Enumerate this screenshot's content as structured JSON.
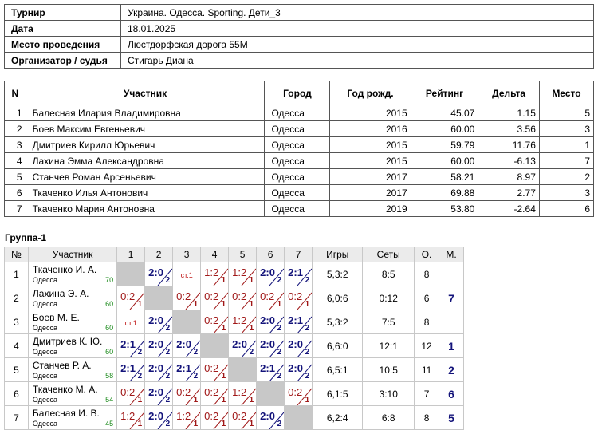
{
  "info": {
    "rows": [
      [
        "Турнир",
        "Украина. Одесса. Sporting. Дети_3"
      ],
      [
        "Дата",
        "18.01.2025"
      ],
      [
        "Место проведения",
        "Люстдорфская дорога 55М"
      ],
      [
        "Организатор / судья",
        "Стигарь Диана"
      ]
    ]
  },
  "players": {
    "header": [
      "N",
      "Участник",
      "Город",
      "Год рожд.",
      "Рейтинг",
      "Дельта",
      "Место"
    ],
    "rows": [
      [
        "1",
        "Балесная Илария Владимировна",
        "Одесса",
        "2015",
        "45.07",
        "1.15",
        "5"
      ],
      [
        "2",
        "Боев Максим Евгеньевич",
        "Одесса",
        "2016",
        "60.00",
        "3.56",
        "3"
      ],
      [
        "3",
        "Дмитриев Кирилл Юрьевич",
        "Одесса",
        "2015",
        "59.79",
        "11.76",
        "1"
      ],
      [
        "4",
        "Лахина Эмма Александровна",
        "Одесса",
        "2015",
        "60.00",
        "-6.13",
        "7"
      ],
      [
        "5",
        "Станчев Роман Арсеньевич",
        "Одесса",
        "2017",
        "58.21",
        "8.97",
        "2"
      ],
      [
        "6",
        "Ткаченко Илья Антонович",
        "Одесса",
        "2017",
        "69.88",
        "2.77",
        "3"
      ],
      [
        "7",
        "Ткаченко Мария Антоновна",
        "Одесса",
        "2019",
        "53.80",
        "-2.64",
        "6"
      ]
    ]
  },
  "group": {
    "title": "Группа-1",
    "header": [
      "№",
      "Участник",
      "1",
      "2",
      "3",
      "4",
      "5",
      "6",
      "7",
      "Игры",
      "Сеты",
      "О.",
      "М."
    ],
    "rows": [
      {
        "n": "1",
        "name": "Ткаченко И. А.",
        "city": "Одесса",
        "rating": "70",
        "results": [
          null,
          {
            "score": "2:0",
            "sub": "2",
            "win": true
          },
          {
            "note": "ст.1"
          },
          {
            "score": "1:2",
            "sub": "1",
            "win": false
          },
          {
            "score": "1:2",
            "sub": "1",
            "win": false
          },
          {
            "score": "2:0",
            "sub": "2",
            "win": true
          },
          {
            "score": "2:1",
            "sub": "2",
            "win": true
          }
        ],
        "games": "5,3:2",
        "sets": "8:5",
        "points": "8",
        "place": null
      },
      {
        "n": "2",
        "name": "Лахина Э. А.",
        "city": "Одесса",
        "rating": "60",
        "results": [
          {
            "score": "0:2",
            "sub": "1",
            "win": false
          },
          null,
          {
            "score": "0:2",
            "sub": "1",
            "win": false
          },
          {
            "score": "0:2",
            "sub": "1",
            "win": false
          },
          {
            "score": "0:2",
            "sub": "1",
            "win": false
          },
          {
            "score": "0:2",
            "sub": "1",
            "win": false
          },
          {
            "score": "0:2",
            "sub": "1",
            "win": false
          }
        ],
        "games": "6,0:6",
        "sets": "0:12",
        "points": "6",
        "place": "7"
      },
      {
        "n": "3",
        "name": "Боев М. Е.",
        "city": "Одесса",
        "rating": "60",
        "results": [
          {
            "note": "ст.1"
          },
          {
            "score": "2:0",
            "sub": "2",
            "win": true
          },
          null,
          {
            "score": "0:2",
            "sub": "1",
            "win": false
          },
          {
            "score": "1:2",
            "sub": "1",
            "win": false
          },
          {
            "score": "2:0",
            "sub": "2",
            "win": true
          },
          {
            "score": "2:1",
            "sub": "2",
            "win": true
          }
        ],
        "games": "5,3:2",
        "sets": "7:5",
        "points": "8",
        "place": null
      },
      {
        "n": "4",
        "name": "Дмитриев К. Ю.",
        "city": "Одесса",
        "rating": "60",
        "results": [
          {
            "score": "2:1",
            "sub": "2",
            "win": true
          },
          {
            "score": "2:0",
            "sub": "2",
            "win": true
          },
          {
            "score": "2:0",
            "sub": "2",
            "win": true
          },
          null,
          {
            "score": "2:0",
            "sub": "2",
            "win": true
          },
          {
            "score": "2:0",
            "sub": "2",
            "win": true
          },
          {
            "score": "2:0",
            "sub": "2",
            "win": true
          }
        ],
        "games": "6,6:0",
        "sets": "12:1",
        "points": "12",
        "place": "1"
      },
      {
        "n": "5",
        "name": "Станчев Р. А.",
        "city": "Одесса",
        "rating": "58",
        "results": [
          {
            "score": "2:1",
            "sub": "2",
            "win": true
          },
          {
            "score": "2:0",
            "sub": "2",
            "win": true
          },
          {
            "score": "2:1",
            "sub": "2",
            "win": true
          },
          {
            "score": "0:2",
            "sub": "1",
            "win": false
          },
          null,
          {
            "score": "2:1",
            "sub": "2",
            "win": true
          },
          {
            "score": "2:0",
            "sub": "2",
            "win": true
          }
        ],
        "games": "6,5:1",
        "sets": "10:5",
        "points": "11",
        "place": "2"
      },
      {
        "n": "6",
        "name": "Ткаченко М. А.",
        "city": "Одесса",
        "rating": "54",
        "results": [
          {
            "score": "0:2",
            "sub": "1",
            "win": false
          },
          {
            "score": "2:0",
            "sub": "2",
            "win": true
          },
          {
            "score": "0:2",
            "sub": "1",
            "win": false
          },
          {
            "score": "0:2",
            "sub": "1",
            "win": false
          },
          {
            "score": "1:2",
            "sub": "1",
            "win": false
          },
          null,
          {
            "score": "0:2",
            "sub": "1",
            "win": false
          }
        ],
        "games": "6,1:5",
        "sets": "3:10",
        "points": "7",
        "place": "6"
      },
      {
        "n": "7",
        "name": "Балесная И. В.",
        "city": "Одесса",
        "rating": "45",
        "results": [
          {
            "score": "1:2",
            "sub": "1",
            "win": false
          },
          {
            "score": "2:0",
            "sub": "2",
            "win": true
          },
          {
            "score": "1:2",
            "sub": "1",
            "win": false
          },
          {
            "score": "0:2",
            "sub": "1",
            "win": false
          },
          {
            "score": "0:2",
            "sub": "1",
            "win": false
          },
          {
            "score": "2:0",
            "sub": "2",
            "win": true
          },
          null
        ],
        "games": "6,2:4",
        "sets": "6:8",
        "points": "8",
        "place": "5"
      }
    ]
  }
}
